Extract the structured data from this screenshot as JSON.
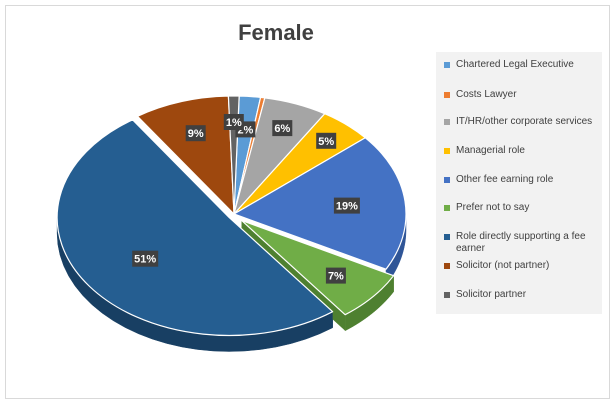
{
  "chart_data": {
    "type": "pie",
    "title": "Female",
    "legend_position": "right",
    "slices": [
      {
        "name": "Chartered Legal Executive",
        "value": 2,
        "label": "2%",
        "color": "#5b9bd5",
        "dark": "#3f7bb0"
      },
      {
        "name": "Costs Lawyer",
        "value": 0.4,
        "label": "",
        "color": "#ed7d31",
        "dark": "#c0601f"
      },
      {
        "name": "IT/HR/other corporate services",
        "value": 6,
        "label": "6%",
        "color": "#a5a5a5",
        "dark": "#7f7f7f"
      },
      {
        "name": "Managerial role",
        "value": 5,
        "label": "5%",
        "color": "#ffc000",
        "dark": "#c99700"
      },
      {
        "name": "Other fee earning role",
        "value": 19,
        "label": "19%",
        "color": "#4472c4",
        "dark": "#2f5597"
      },
      {
        "name": "Prefer not to say",
        "value": 7,
        "label": "7%",
        "color": "#70ad47",
        "dark": "#4e8030"
      },
      {
        "name": "Role directly supporting a fee earner",
        "value": 51,
        "label": "51%",
        "color": "#255e91",
        "dark": "#183f63"
      },
      {
        "name": "Solicitor (not partner)",
        "value": 9,
        "label": "9%",
        "color": "#9e480e",
        "dark": "#6e3109"
      },
      {
        "name": "Solicitor partner",
        "value": 1,
        "label": "1%",
        "color": "#636363",
        "dark": "#404040"
      }
    ]
  }
}
